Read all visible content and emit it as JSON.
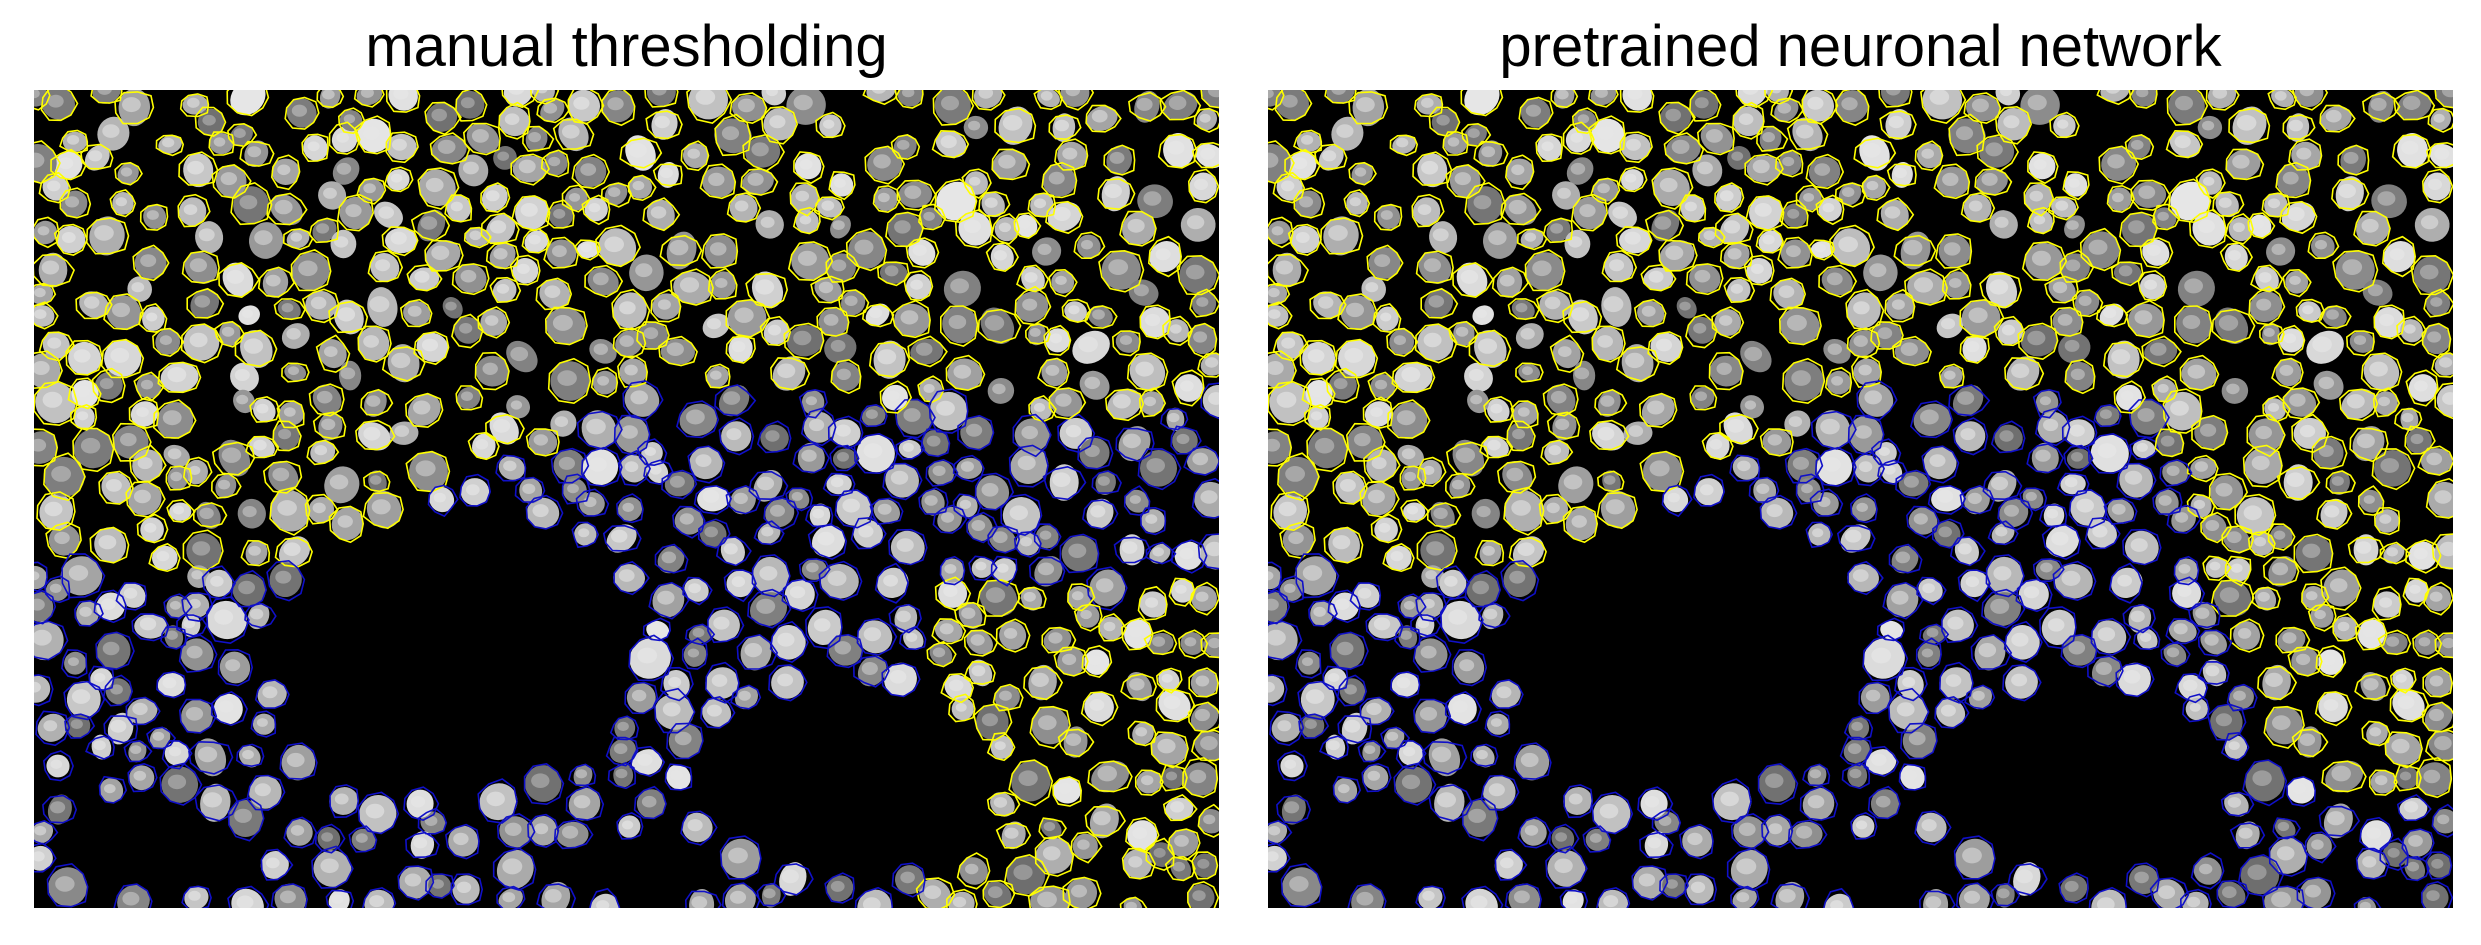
{
  "panels": [
    {
      "title": "manual thresholding"
    },
    {
      "title": "pretrained neuronal network"
    }
  ],
  "colors": {
    "background": "#ffffff",
    "image_background": "#000000",
    "nucleus_fill": "#9a9a9a",
    "nucleus_highlight": "#e6e6e6",
    "outline_class_a": "#ffff00",
    "outline_class_b": "#1010c8"
  }
}
